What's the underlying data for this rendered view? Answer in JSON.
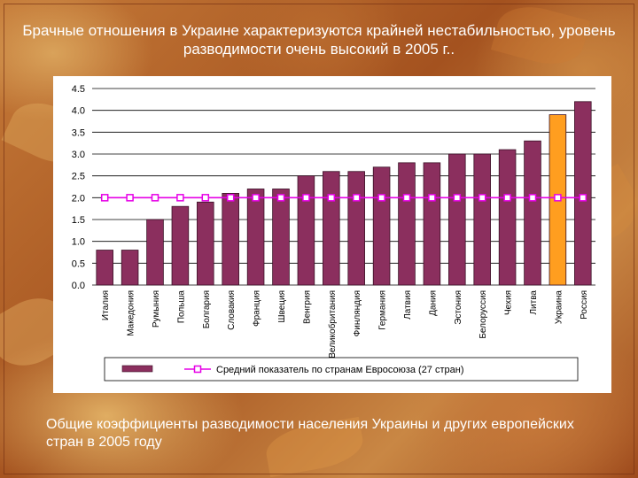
{
  "slide": {
    "title": "Брачные отношения в Украине характеризуются крайней нестабильностью, уровень разводимости очень высокий в 2005 г..",
    "caption": "Общие коэффициенты разводимости населения Украины и других европейских стран в 2005 году"
  },
  "colors": {
    "bar": "#8b2f5e",
    "highlight_bar": "#ff9e1f",
    "average_line": "#e600e6",
    "text_white": "#ffffff"
  },
  "chart_data": {
    "type": "bar",
    "categories": [
      "Италия",
      "Македония",
      "Румыния",
      "Польша",
      "Болгария",
      "Словакия",
      "Франция",
      "Швеция",
      "Венгрия",
      "Великобритания",
      "Финляндия",
      "Германия",
      "Латвия",
      "Дания",
      "Эстония",
      "Белоруссия",
      "Чехия",
      "Литва",
      "Украина",
      "Россия"
    ],
    "values": [
      0.8,
      0.8,
      1.5,
      1.8,
      1.9,
      2.1,
      2.2,
      2.2,
      2.5,
      2.6,
      2.6,
      2.7,
      2.8,
      2.8,
      3.0,
      3.0,
      3.1,
      3.3,
      3.9,
      4.2
    ],
    "highlight_index": 18,
    "average": {
      "name": "Средний показатель по странам Евросоюза (27 стран)",
      "value": 2.0
    },
    "ylim": [
      0,
      4.5
    ],
    "yticks": [
      "0.0",
      "0.5",
      "1.0",
      "1.5",
      "2.0",
      "2.5",
      "3.0",
      "3.5",
      "4.0",
      "4.5"
    ],
    "grid": true,
    "legend_placement": "bottom"
  }
}
